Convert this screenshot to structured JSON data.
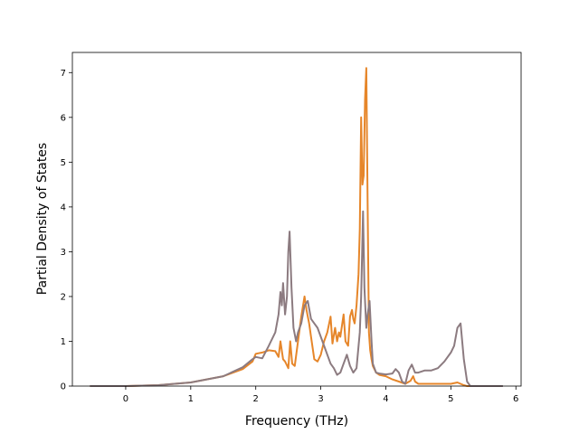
{
  "chart_data": {
    "type": "line",
    "title": "",
    "xlabel": "Frequency (THz)",
    "ylabel": "Partial Density of States",
    "xlim": [
      -0.82,
      6.08
    ],
    "ylim": [
      0,
      7.45
    ],
    "xticks": [
      0,
      1,
      2,
      3,
      4,
      5,
      6
    ],
    "yticks": [
      0,
      1,
      2,
      3,
      4,
      5,
      6,
      7
    ],
    "grid": false,
    "series": [
      {
        "color": "#e6862a",
        "x": [
          -0.55,
          0.0,
          0.5,
          1.0,
          1.5,
          1.8,
          1.95,
          2.0,
          2.1,
          2.2,
          2.3,
          2.35,
          2.38,
          2.42,
          2.45,
          2.5,
          2.53,
          2.56,
          2.6,
          2.65,
          2.7,
          2.75,
          2.78,
          2.82,
          2.85,
          2.9,
          2.95,
          3.0,
          3.05,
          3.1,
          3.15,
          3.18,
          3.22,
          3.25,
          3.28,
          3.3,
          3.35,
          3.38,
          3.42,
          3.45,
          3.48,
          3.5,
          3.52,
          3.55,
          3.58,
          3.6,
          3.62,
          3.64,
          3.66,
          3.68,
          3.7,
          3.72,
          3.74,
          3.76,
          3.78,
          3.8,
          3.85,
          3.9,
          4.0,
          4.1,
          4.2,
          4.3,
          4.38,
          4.42,
          4.45,
          4.5,
          4.6,
          4.8,
          5.0,
          5.1,
          5.15,
          5.2,
          5.25,
          5.3
        ],
        "values": [
          0,
          0,
          0.02,
          0.08,
          0.22,
          0.38,
          0.55,
          0.72,
          0.75,
          0.8,
          0.78,
          0.65,
          1.0,
          0.6,
          0.55,
          0.4,
          1.0,
          0.5,
          0.45,
          1.0,
          1.55,
          2.0,
          1.7,
          1.4,
          1.1,
          0.6,
          0.55,
          0.7,
          1.0,
          1.2,
          1.55,
          0.95,
          1.3,
          1.0,
          1.2,
          1.1,
          1.6,
          1.0,
          0.9,
          1.55,
          1.7,
          1.5,
          1.4,
          1.8,
          2.5,
          3.5,
          6.0,
          4.5,
          4.7,
          6.4,
          7.1,
          4.0,
          1.2,
          0.8,
          0.6,
          0.45,
          0.3,
          0.25,
          0.22,
          0.15,
          0.1,
          0.05,
          0.12,
          0.22,
          0.1,
          0.05,
          0.05,
          0.05,
          0.05,
          0.08,
          0.05,
          0.02,
          0.0,
          0.0
        ]
      },
      {
        "color": "#8c7b80",
        "x": [
          -0.55,
          0.0,
          0.5,
          1.0,
          1.5,
          1.8,
          1.95,
          2.0,
          2.1,
          2.2,
          2.3,
          2.35,
          2.38,
          2.4,
          2.42,
          2.45,
          2.48,
          2.5,
          2.52,
          2.55,
          2.58,
          2.62,
          2.65,
          2.7,
          2.75,
          2.8,
          2.85,
          2.9,
          2.95,
          3.0,
          3.05,
          3.1,
          3.15,
          3.2,
          3.25,
          3.3,
          3.35,
          3.4,
          3.45,
          3.5,
          3.55,
          3.6,
          3.62,
          3.65,
          3.67,
          3.7,
          3.72,
          3.75,
          3.78,
          3.8,
          3.85,
          3.9,
          4.0,
          4.1,
          4.15,
          4.2,
          4.25,
          4.3,
          4.35,
          4.4,
          4.45,
          4.5,
          4.6,
          4.7,
          4.8,
          4.9,
          5.0,
          5.05,
          5.1,
          5.15,
          5.2,
          5.25,
          5.3,
          5.8
        ],
        "values": [
          0,
          0,
          0.02,
          0.08,
          0.22,
          0.42,
          0.6,
          0.65,
          0.62,
          0.9,
          1.2,
          1.6,
          2.1,
          1.8,
          2.3,
          1.6,
          2.0,
          3.0,
          3.45,
          2.2,
          1.3,
          1.0,
          1.2,
          1.4,
          1.8,
          1.9,
          1.5,
          1.4,
          1.3,
          1.1,
          0.9,
          0.7,
          0.5,
          0.4,
          0.25,
          0.3,
          0.5,
          0.7,
          0.45,
          0.3,
          0.4,
          1.2,
          2.0,
          3.9,
          2.2,
          1.3,
          1.6,
          1.9,
          1.0,
          0.5,
          0.3,
          0.28,
          0.26,
          0.28,
          0.38,
          0.3,
          0.1,
          0.05,
          0.35,
          0.48,
          0.3,
          0.3,
          0.35,
          0.35,
          0.4,
          0.55,
          0.75,
          0.9,
          1.3,
          1.4,
          0.6,
          0.1,
          0.0,
          0.0
        ]
      }
    ]
  }
}
